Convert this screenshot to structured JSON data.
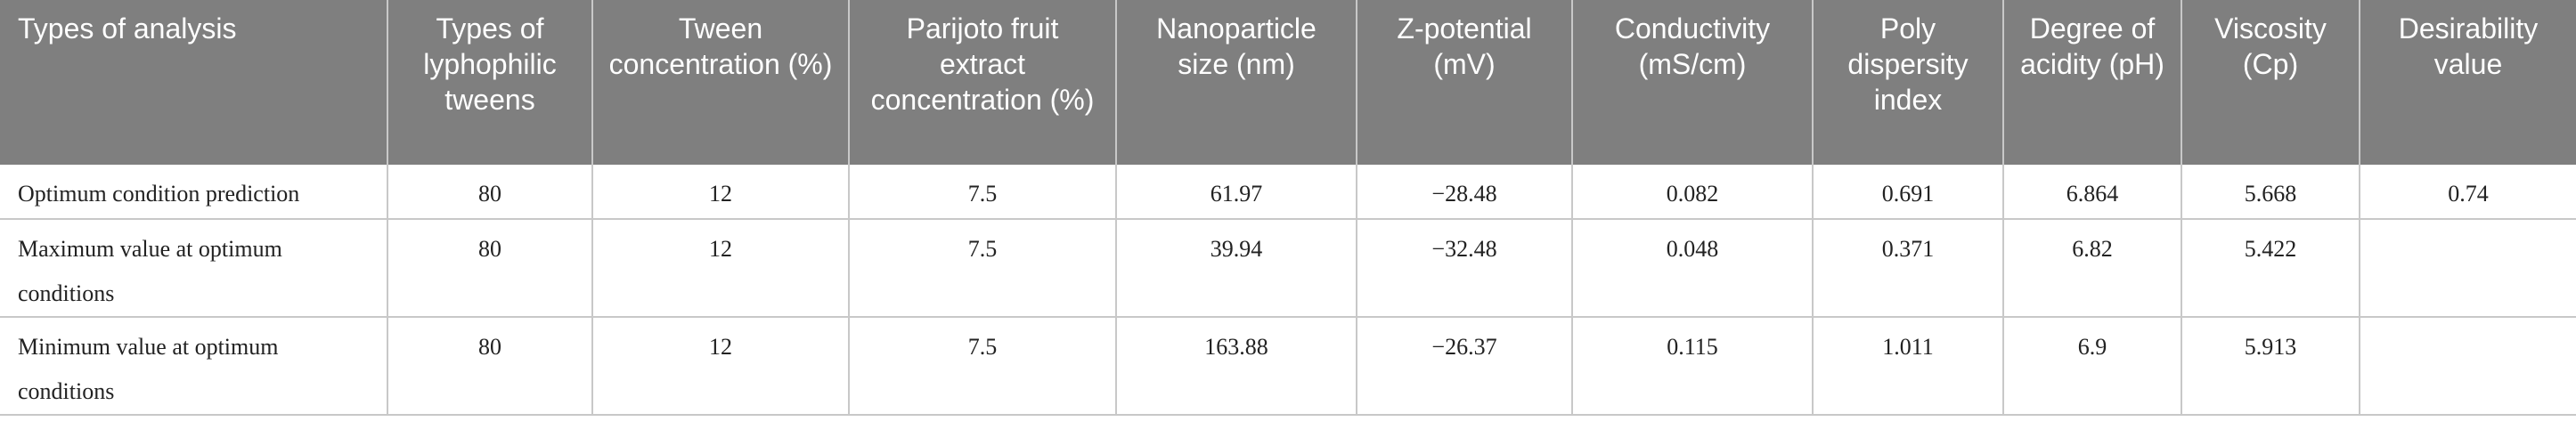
{
  "headers": [
    "Types of analysis",
    "Types of lyphophilic tweens",
    "Tween concentration (%)",
    "Parijoto fruit extract concentration (%)",
    "Nanoparticle size (nm)",
    "Z-potential (mV)",
    "Conductivity (mS/cm)",
    "Poly dispersity index",
    "Degree of acidity (pH)",
    "Viscosity (Cp)",
    "Desirability value"
  ],
  "rows": [
    [
      "Optimum condition prediction",
      "80",
      "12",
      "7.5",
      "61.97",
      "−28.48",
      "0.082",
      "0.691",
      "6.864",
      "5.668",
      "0.74"
    ],
    [
      "Maximum value at optimum conditions",
      "80",
      "12",
      "7.5",
      "39.94",
      "−32.48",
      "0.048",
      "0.371",
      "6.82",
      "5.422",
      ""
    ],
    [
      "Minimum value at optimum conditions",
      "80",
      "12",
      "7.5",
      "163.88",
      "−26.37",
      "0.115",
      "1.011",
      "6.9",
      "5.913",
      ""
    ]
  ]
}
